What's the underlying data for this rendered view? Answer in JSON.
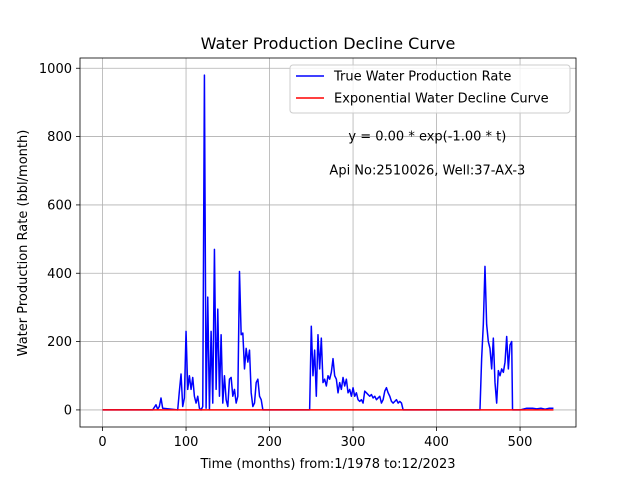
{
  "chart_data": {
    "type": "line",
    "title": "Water Production Decline Curve",
    "xlabel": "Time (months) from:1/1978 to:12/2023",
    "ylabel": "Water Production Rate (bbl/month)",
    "xlim": [
      -27,
      567
    ],
    "ylim": [
      -50,
      1030
    ],
    "xticks": [
      0,
      100,
      200,
      300,
      400,
      500
    ],
    "yticks": [
      0,
      200,
      400,
      600,
      800,
      1000
    ],
    "grid": true,
    "legend_position": "top-right",
    "annotations": [
      {
        "text": "y = 0.00 * exp(-1.00 * t)"
      },
      {
        "text": "Api No:2510026, Well:37-AX-3"
      }
    ],
    "series": [
      {
        "name": "True Water Production Rate",
        "color": "#0000ff",
        "points": [
          [
            0,
            0
          ],
          [
            60,
            0
          ],
          [
            64,
            15
          ],
          [
            66,
            2
          ],
          [
            68,
            10
          ],
          [
            70,
            35
          ],
          [
            72,
            5
          ],
          [
            90,
            0
          ],
          [
            92,
            55
          ],
          [
            94,
            105
          ],
          [
            96,
            10
          ],
          [
            98,
            35
          ],
          [
            100,
            230
          ],
          [
            102,
            60
          ],
          [
            104,
            100
          ],
          [
            106,
            60
          ],
          [
            108,
            95
          ],
          [
            110,
            40
          ],
          [
            112,
            20
          ],
          [
            114,
            40
          ],
          [
            116,
            5
          ],
          [
            118,
            0
          ],
          [
            120,
            10
          ],
          [
            122,
            980
          ],
          [
            124,
            5
          ],
          [
            126,
            330
          ],
          [
            128,
            0
          ],
          [
            130,
            230
          ],
          [
            132,
            20
          ],
          [
            134,
            470
          ],
          [
            136,
            60
          ],
          [
            138,
            295
          ],
          [
            140,
            40
          ],
          [
            142,
            220
          ],
          [
            144,
            20
          ],
          [
            146,
            100
          ],
          [
            148,
            30
          ],
          [
            150,
            10
          ],
          [
            152,
            90
          ],
          [
            154,
            95
          ],
          [
            156,
            40
          ],
          [
            158,
            60
          ],
          [
            160,
            20
          ],
          [
            162,
            40
          ],
          [
            164,
            405
          ],
          [
            166,
            220
          ],
          [
            168,
            225
          ],
          [
            170,
            120
          ],
          [
            172,
            180
          ],
          [
            174,
            140
          ],
          [
            176,
            175
          ],
          [
            178,
            50
          ],
          [
            180,
            10
          ],
          [
            182,
            20
          ],
          [
            184,
            80
          ],
          [
            186,
            90
          ],
          [
            188,
            40
          ],
          [
            190,
            30
          ],
          [
            192,
            0
          ],
          [
            248,
            0
          ],
          [
            250,
            245
          ],
          [
            252,
            100
          ],
          [
            254,
            175
          ],
          [
            256,
            40
          ],
          [
            258,
            220
          ],
          [
            260,
            120
          ],
          [
            262,
            210
          ],
          [
            264,
            80
          ],
          [
            266,
            90
          ],
          [
            268,
            70
          ],
          [
            270,
            100
          ],
          [
            272,
            90
          ],
          [
            274,
            110
          ],
          [
            276,
            150
          ],
          [
            278,
            100
          ],
          [
            280,
            90
          ],
          [
            282,
            50
          ],
          [
            284,
            80
          ],
          [
            286,
            60
          ],
          [
            288,
            95
          ],
          [
            290,
            70
          ],
          [
            292,
            90
          ],
          [
            294,
            50
          ],
          [
            296,
            60
          ],
          [
            298,
            40
          ],
          [
            300,
            65
          ],
          [
            302,
            40
          ],
          [
            304,
            50
          ],
          [
            306,
            30
          ],
          [
            308,
            25
          ],
          [
            310,
            30
          ],
          [
            312,
            20
          ],
          [
            314,
            55
          ],
          [
            316,
            50
          ],
          [
            318,
            45
          ],
          [
            320,
            40
          ],
          [
            322,
            45
          ],
          [
            324,
            35
          ],
          [
            326,
            40
          ],
          [
            328,
            30
          ],
          [
            330,
            35
          ],
          [
            332,
            40
          ],
          [
            334,
            20
          ],
          [
            336,
            30
          ],
          [
            338,
            55
          ],
          [
            340,
            65
          ],
          [
            342,
            50
          ],
          [
            344,
            40
          ],
          [
            346,
            25
          ],
          [
            348,
            20
          ],
          [
            350,
            25
          ],
          [
            352,
            30
          ],
          [
            354,
            20
          ],
          [
            356,
            25
          ],
          [
            358,
            20
          ],
          [
            360,
            0
          ],
          [
            452,
            0
          ],
          [
            454,
            150
          ],
          [
            456,
            250
          ],
          [
            458,
            420
          ],
          [
            460,
            250
          ],
          [
            462,
            200
          ],
          [
            464,
            180
          ],
          [
            466,
            120
          ],
          [
            468,
            210
          ],
          [
            470,
            80
          ],
          [
            472,
            20
          ],
          [
            474,
            115
          ],
          [
            476,
            100
          ],
          [
            478,
            120
          ],
          [
            480,
            110
          ],
          [
            482,
            140
          ],
          [
            484,
            215
          ],
          [
            486,
            120
          ],
          [
            488,
            190
          ],
          [
            490,
            200
          ],
          [
            491,
            0
          ],
          [
            495,
            0
          ],
          [
            500,
            0
          ],
          [
            508,
            5
          ],
          [
            515,
            5
          ],
          [
            520,
            3
          ],
          [
            525,
            5
          ],
          [
            530,
            2
          ],
          [
            535,
            5
          ],
          [
            540,
            5
          ]
        ]
      },
      {
        "name": "Exponential Water Decline Curve",
        "color": "#ff0000",
        "points": [
          [
            0,
            0
          ],
          [
            540,
            0
          ]
        ]
      }
    ]
  }
}
